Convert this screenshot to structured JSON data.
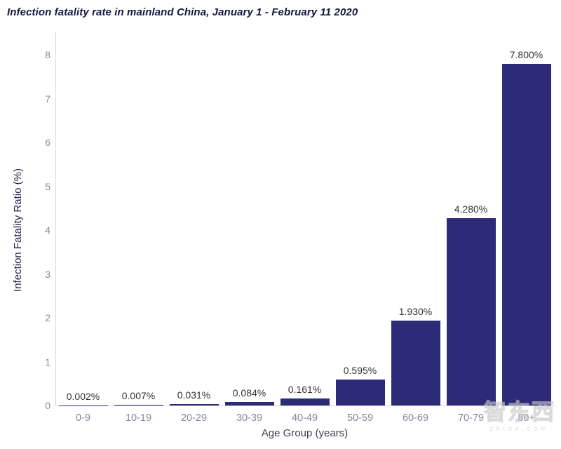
{
  "title": "Infection fatality rate in mainland China, January 1 - February 11 2020",
  "chart_data": {
    "type": "bar",
    "categories": [
      "0-9",
      "10-19",
      "20-29",
      "30-39",
      "40-49",
      "50-59",
      "60-69",
      "70-79",
      "80+"
    ],
    "values": [
      0.002,
      0.007,
      0.031,
      0.084,
      0.161,
      0.595,
      1.93,
      4.28,
      7.8
    ],
    "value_labels": [
      "0.002%",
      "0.007%",
      "0.031%",
      "0.084%",
      "0.161%",
      "0.595%",
      "1.930%",
      "4.280%",
      "7.800%"
    ],
    "title": "Infection fatality rate in mainland China, January 1 - February 11 2020",
    "xlabel": "Age Group (years)",
    "ylabel": "Infection Fatality Ratio (%)",
    "ylim": [
      0,
      8
    ],
    "yticks": [
      0,
      1,
      2,
      3,
      4,
      5,
      6,
      7,
      8
    ],
    "grid": false,
    "legend": false,
    "bar_color": "#2d2a77",
    "tick_color": "#8b8b90",
    "category_tick_color": "#85859a"
  },
  "watermark": {
    "logo": "智东西",
    "domain": "zhidx.com"
  }
}
